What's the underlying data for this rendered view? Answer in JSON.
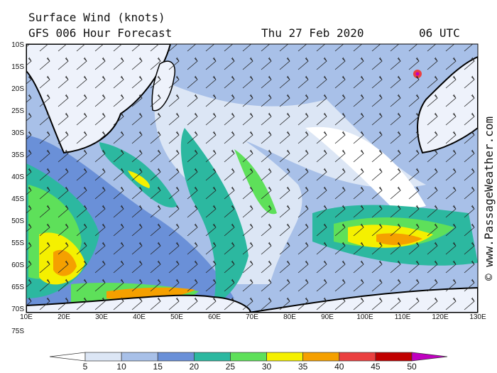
{
  "title": "Surface Wind (knots)",
  "subtitle": "GFS 006 Hour Forecast",
  "date": "Thu 27 Feb 2020",
  "time": "06 UTC",
  "credit": "© www.PassageWeather.com",
  "lat_labels": [
    "10S",
    "15S",
    "20S",
    "25S",
    "30S",
    "35S",
    "40S",
    "45S",
    "50S",
    "55S",
    "60S",
    "65S",
    "70S",
    "75S"
  ],
  "lon_labels": [
    "10E",
    "20E",
    "30E",
    "40E",
    "50E",
    "60E",
    "70E",
    "80E",
    "90E",
    "100E",
    "110E",
    "120E",
    "130E"
  ],
  "colorbar": {
    "ticks": [
      5,
      10,
      15,
      20,
      25,
      30,
      35,
      40,
      45,
      50
    ],
    "colors": [
      "#ffffff",
      "#dce6f5",
      "#a8c0e8",
      "#6a90d8",
      "#2cb8a0",
      "#5ee05a",
      "#f5f000",
      "#f5a000",
      "#ea4040",
      "#c00000",
      "#c000c0"
    ]
  }
}
